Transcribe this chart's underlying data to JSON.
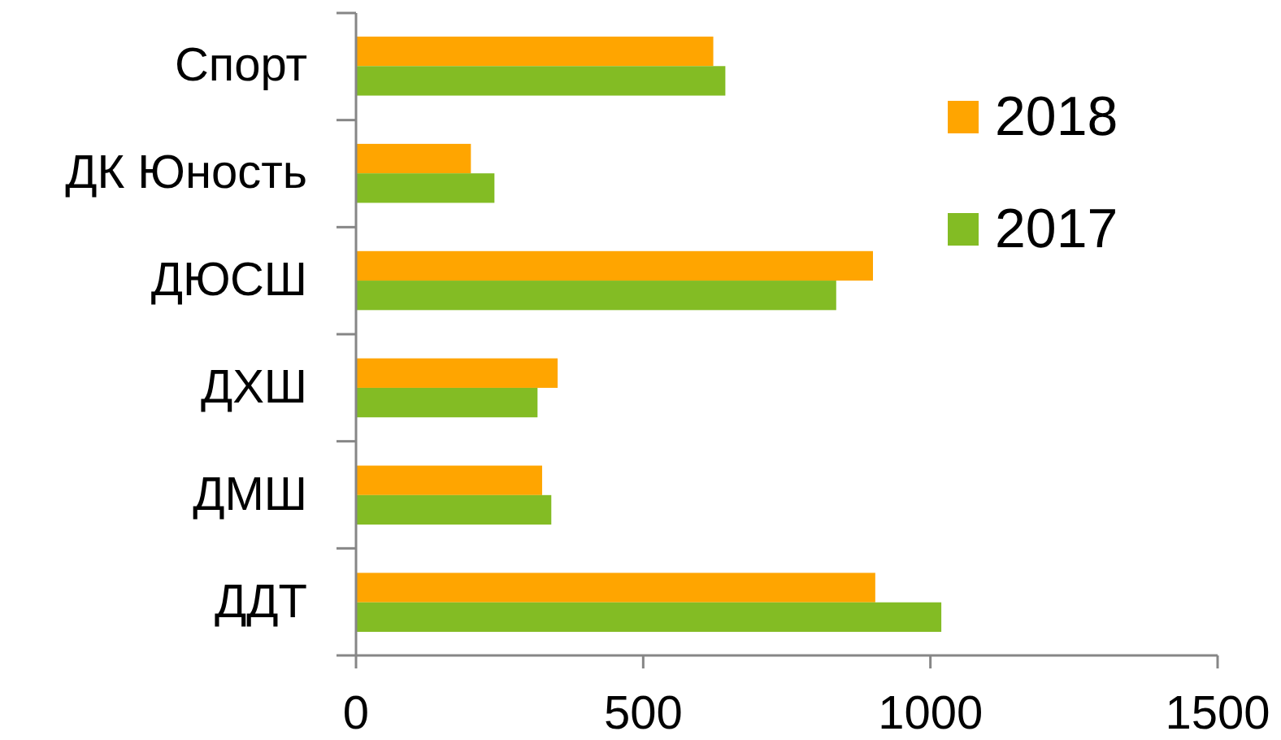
{
  "chart_data": {
    "type": "bar",
    "orientation": "horizontal",
    "categories": [
      "Спорт",
      "ДК Юность",
      "ДЮСШ",
      "ДХШ",
      "ДМШ",
      "ДДТ"
    ],
    "series": [
      {
        "name": "2018",
        "color": "#ffa500",
        "values": [
          622,
          200,
          900,
          351,
          324,
          904
        ]
      },
      {
        "name": "2017",
        "color": "#83bc24",
        "values": [
          643,
          241,
          836,
          316,
          340,
          1019
        ]
      }
    ],
    "xlim": [
      0,
      1500
    ],
    "xticks": [
      0,
      500,
      1000,
      1500
    ],
    "grid": false,
    "legend": "right"
  }
}
